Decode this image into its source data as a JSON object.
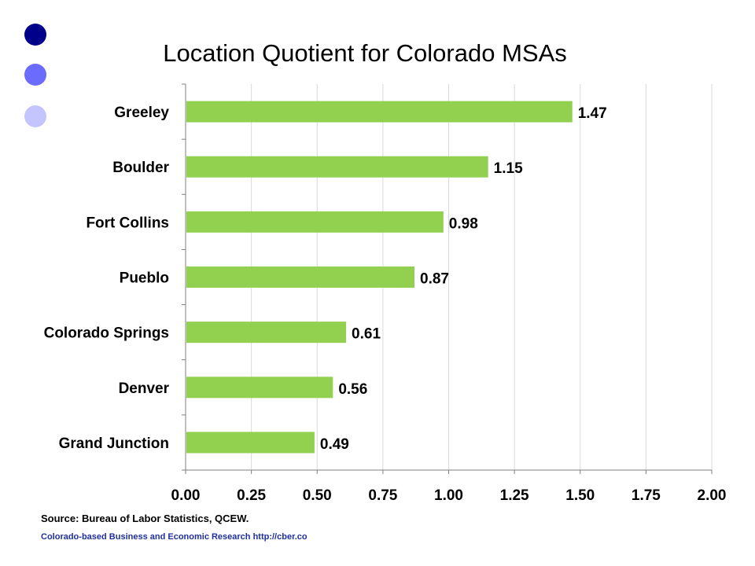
{
  "slide": {
    "title": "Location Quotient for Colorado MSAs",
    "source": "Source: Bureau of Labor Statistics, QCEW.",
    "credit": "Colorado-based Business and Economic Research http://cber.co",
    "bullet_colors": [
      "#00008b",
      "#6b6bff",
      "#c4c4ff"
    ]
  },
  "chart_data": {
    "type": "bar",
    "orientation": "horizontal",
    "categories": [
      "Greeley",
      "Boulder",
      "Fort Collins",
      "Pueblo",
      "Colorado Springs",
      "Denver",
      "Grand Junction"
    ],
    "values": [
      1.47,
      1.15,
      0.98,
      0.87,
      0.61,
      0.56,
      0.49
    ],
    "data_labels": [
      "1.47",
      "1.15",
      "0.98",
      "0.87",
      "0.61",
      "0.56",
      "0.49"
    ],
    "xlim": [
      0,
      2
    ],
    "xticks": [
      "0.00",
      "0.25",
      "0.50",
      "0.75",
      "1.00",
      "1.25",
      "1.50",
      "1.75",
      "2.00"
    ],
    "xtick_values": [
      0,
      0.25,
      0.5,
      0.75,
      1,
      1.25,
      1.5,
      1.75,
      2
    ],
    "bar_color": "#92d050",
    "grid": "vertical",
    "legend": "none"
  }
}
